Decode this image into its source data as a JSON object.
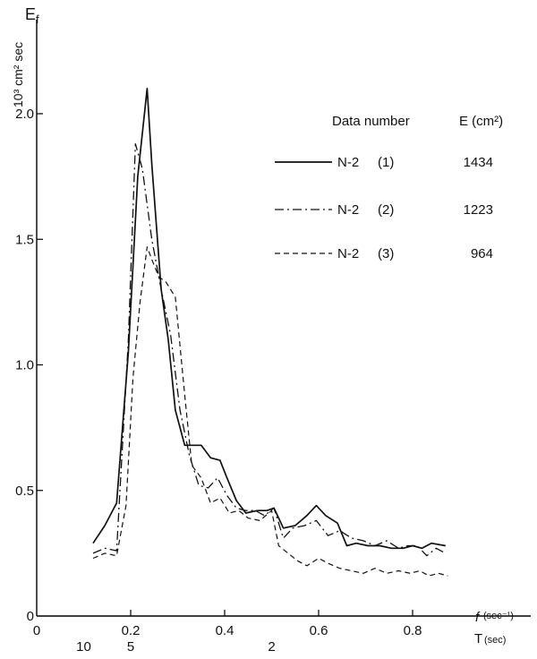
{
  "chart_data": {
    "type": "line",
    "ylabel_unit": "10³ cm² sec",
    "ylabel": "E",
    "ylabel_sub": "f",
    "xlabel": "f",
    "xlabel_unit": "(sec⁻¹)",
    "t_label": "T",
    "t_label_unit": "(sec)",
    "xlim": [
      0,
      0.95
    ],
    "ylim": [
      0,
      2.35
    ],
    "x_ticks": [
      {
        "value": 0,
        "label": "0"
      },
      {
        "value": 0.2,
        "label": "0.2"
      },
      {
        "value": 0.4,
        "label": "0.4"
      },
      {
        "value": 0.6,
        "label": "0.6"
      },
      {
        "value": 0.8,
        "label": "0.8"
      }
    ],
    "y_ticks": [
      {
        "value": 0,
        "label": "0"
      },
      {
        "value": 0.5,
        "label": "0.5"
      },
      {
        "value": 1.0,
        "label": "1.0"
      },
      {
        "value": 1.5,
        "label": "1.5"
      },
      {
        "value": 2.0,
        "label": "2.0"
      }
    ],
    "period_ticks": [
      {
        "freq": 0.1,
        "label": "10"
      },
      {
        "freq": 0.2,
        "label": "5"
      },
      {
        "freq": 0.5,
        "label": "2"
      }
    ],
    "legend": {
      "header_data": "Data number",
      "header_energy": "E (cm²)",
      "placement": "top-right"
    },
    "series": [
      {
        "name": "N-2",
        "name_sub": "(1)",
        "energy": "1434",
        "style": "solid",
        "x": [
          0.12,
          0.145,
          0.17,
          0.195,
          0.215,
          0.235,
          0.245,
          0.265,
          0.28,
          0.295,
          0.315,
          0.33,
          0.35,
          0.37,
          0.39,
          0.405,
          0.425,
          0.445,
          0.47,
          0.49,
          0.505,
          0.525,
          0.55,
          0.575,
          0.595,
          0.615,
          0.64,
          0.66,
          0.68,
          0.705,
          0.73,
          0.755,
          0.78,
          0.8,
          0.82,
          0.84,
          0.87
        ],
        "y": [
          0.29,
          0.36,
          0.45,
          1.05,
          1.75,
          2.1,
          1.8,
          1.3,
          1.1,
          0.82,
          0.68,
          0.68,
          0.68,
          0.63,
          0.62,
          0.55,
          0.46,
          0.41,
          0.42,
          0.42,
          0.43,
          0.35,
          0.36,
          0.4,
          0.44,
          0.4,
          0.37,
          0.28,
          0.29,
          0.28,
          0.28,
          0.27,
          0.27,
          0.28,
          0.27,
          0.29,
          0.28
        ]
      },
      {
        "name": "N-2",
        "name_sub": "(2)",
        "energy": "1223",
        "style": "dashdot",
        "x": [
          0.12,
          0.145,
          0.17,
          0.195,
          0.21,
          0.225,
          0.245,
          0.265,
          0.285,
          0.305,
          0.325,
          0.345,
          0.365,
          0.385,
          0.405,
          0.425,
          0.445,
          0.465,
          0.485,
          0.505,
          0.525,
          0.545,
          0.57,
          0.595,
          0.62,
          0.645,
          0.67,
          0.695,
          0.72,
          0.745,
          0.77,
          0.79,
          0.81,
          0.83,
          0.85,
          0.87
        ],
        "y": [
          0.25,
          0.27,
          0.26,
          1.1,
          1.88,
          1.78,
          1.5,
          1.3,
          1.12,
          0.82,
          0.64,
          0.52,
          0.51,
          0.55,
          0.48,
          0.43,
          0.42,
          0.42,
          0.4,
          0.43,
          0.31,
          0.35,
          0.36,
          0.38,
          0.32,
          0.34,
          0.31,
          0.3,
          0.28,
          0.3,
          0.27,
          0.28,
          0.28,
          0.24,
          0.27,
          0.25
        ]
      },
      {
        "name": "N-2",
        "name_sub": "(3)",
        "energy": "964",
        "style": "dashed",
        "x": [
          0.12,
          0.145,
          0.17,
          0.19,
          0.205,
          0.22,
          0.235,
          0.245,
          0.26,
          0.275,
          0.295,
          0.315,
          0.33,
          0.35,
          0.37,
          0.39,
          0.41,
          0.43,
          0.45,
          0.475,
          0.5,
          0.515,
          0.535,
          0.555,
          0.575,
          0.6,
          0.62,
          0.645,
          0.67,
          0.695,
          0.72,
          0.745,
          0.77,
          0.795,
          0.815,
          0.835,
          0.855,
          0.875
        ],
        "y": [
          0.23,
          0.25,
          0.24,
          0.44,
          0.95,
          1.25,
          1.47,
          1.42,
          1.35,
          1.33,
          1.27,
          0.88,
          0.6,
          0.55,
          0.45,
          0.47,
          0.41,
          0.42,
          0.39,
          0.38,
          0.42,
          0.28,
          0.25,
          0.22,
          0.2,
          0.23,
          0.21,
          0.19,
          0.18,
          0.17,
          0.19,
          0.17,
          0.18,
          0.17,
          0.18,
          0.16,
          0.17,
          0.16
        ]
      }
    ]
  }
}
